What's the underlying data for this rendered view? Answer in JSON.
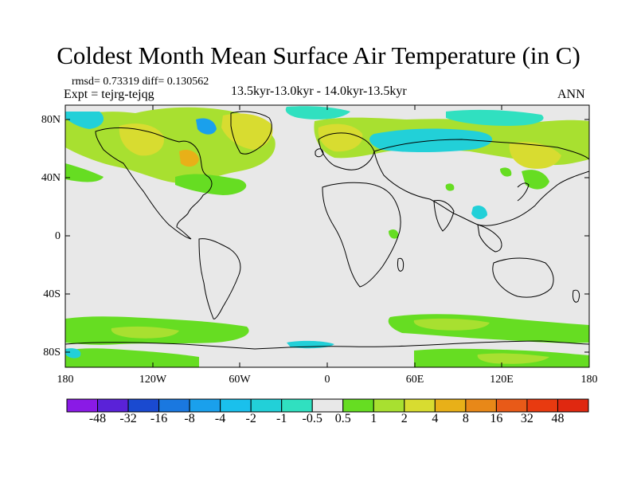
{
  "title": "Coldest Month Mean Surface Air Temperature (in C)",
  "stats": {
    "rmsd_line": "rmsd= 0.73319 diff= 0.130562",
    "expt_line": "Expt = tejrg-tejqg"
  },
  "periods": "13.5kyr-13.0kyr - 14.0kyr-13.5kyr",
  "season": "ANN",
  "map": {
    "projection": "cylindrical-equidistant",
    "lon_range": [
      -180,
      180
    ],
    "lat_range": [
      -90,
      90
    ],
    "lat_ticks": [
      "80N",
      "40N",
      "0",
      "40S",
      "80S"
    ],
    "lon_ticks": [
      "180",
      "120W",
      "60W",
      "0",
      "60E",
      "120E",
      "180"
    ],
    "background_color": "#e8e8e8",
    "coastline_color": "#000000"
  },
  "colorbar": {
    "labels": [
      "-48",
      "-32",
      "-16",
      "-8",
      "-4",
      "-2",
      "-1",
      "-0.5",
      "0.5",
      "1",
      "2",
      "4",
      "8",
      "16",
      "32",
      "48"
    ],
    "colors": [
      "#8a1ae6",
      "#5a22d8",
      "#1a4ad0",
      "#1a78e0",
      "#1aa0ec",
      "#1ac0ec",
      "#22d0d8",
      "#30e0c0",
      "#e8e8e8",
      "#66dd22",
      "#a8e030",
      "#d8dc30",
      "#e8b018",
      "#e88818",
      "#e85a18",
      "#e83a10",
      "#e02810"
    ]
  }
}
